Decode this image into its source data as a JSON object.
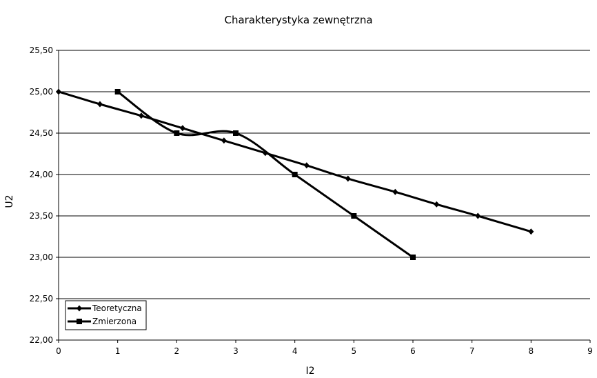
{
  "chart_data": {
    "type": "line",
    "title": "Charakterystyka zewnętrzna",
    "xlabel": "I2",
    "ylabel": "U2",
    "xlim": [
      0,
      9
    ],
    "ylim": [
      22.0,
      25.5
    ],
    "x_ticks": [
      "0",
      "1",
      "2",
      "3",
      "4",
      "5",
      "6",
      "7",
      "8",
      "9"
    ],
    "y_ticks": [
      "22,00",
      "22,50",
      "23,00",
      "23,50",
      "24,00",
      "24,50",
      "25,00",
      "25,50"
    ],
    "grid": "horizontal",
    "legend_position": "bottom-left",
    "series": [
      {
        "name": "Teoretyczna",
        "marker": "diamond",
        "points": [
          [
            0,
            25.0
          ],
          [
            0.7,
            24.85
          ],
          [
            1.4,
            24.71
          ],
          [
            2.1,
            24.56
          ],
          [
            2.8,
            24.41
          ],
          [
            3.5,
            24.26
          ],
          [
            4.2,
            24.11
          ],
          [
            4.9,
            23.95
          ],
          [
            5.7,
            23.79
          ],
          [
            6.4,
            23.64
          ],
          [
            7.1,
            23.5
          ],
          [
            8,
            23.31
          ]
        ]
      },
      {
        "name": "Zmierzona",
        "marker": "square",
        "points": [
          [
            1,
            25.0
          ],
          [
            2,
            24.5
          ],
          [
            3,
            24.5
          ],
          [
            4,
            24.0
          ],
          [
            5,
            23.5
          ],
          [
            6,
            23.0
          ]
        ]
      }
    ],
    "line_color": "#000000"
  }
}
